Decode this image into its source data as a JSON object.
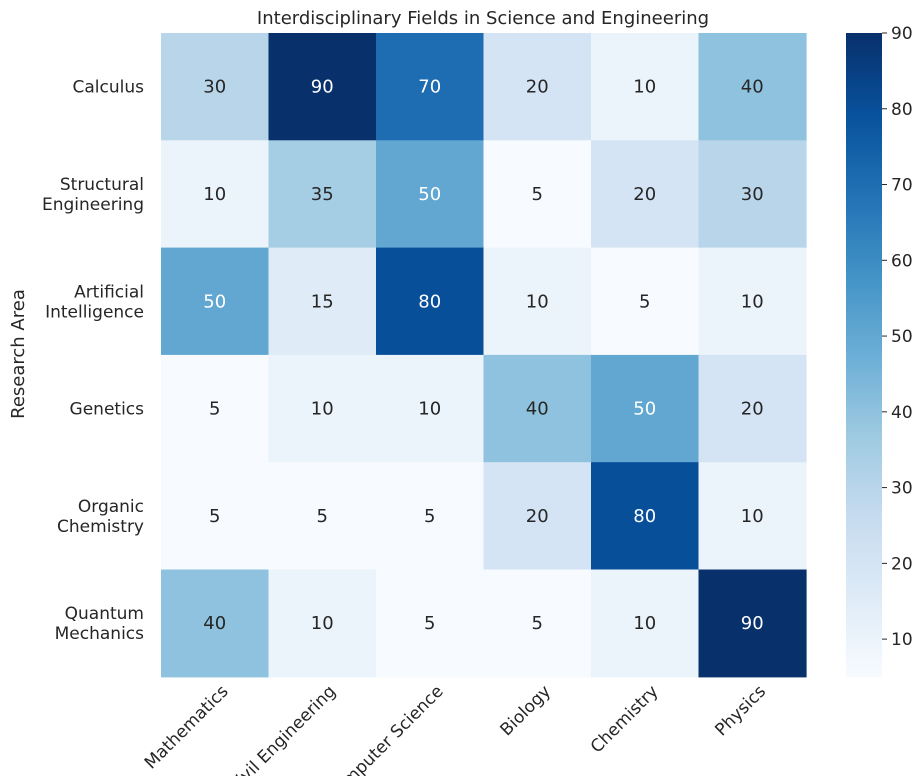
{
  "chart_data": {
    "type": "heatmap",
    "title": "Interdisciplinary Fields in Science and Engineering",
    "xlabel": "",
    "ylabel": "Research Area",
    "x_categories": [
      "Mathematics",
      "Civil Engineering",
      "Computer Science",
      "Biology",
      "Chemistry",
      "Physics"
    ],
    "y_categories": [
      "Calculus",
      "Structural Engineering",
      "Artificial Intelligence",
      "Genetics",
      "Organic Chemistry",
      "Quantum Mechanics"
    ],
    "values": [
      [
        30,
        90,
        70,
        20,
        10,
        40
      ],
      [
        10,
        35,
        50,
        5,
        20,
        30
      ],
      [
        50,
        15,
        80,
        10,
        5,
        10
      ],
      [
        5,
        10,
        10,
        40,
        50,
        20
      ],
      [
        5,
        5,
        5,
        20,
        80,
        10
      ],
      [
        40,
        10,
        5,
        5,
        10,
        90
      ]
    ],
    "colorscale": "Blues",
    "colorbar": {
      "min": 5,
      "max": 90,
      "ticks": [
        10,
        20,
        30,
        40,
        50,
        60,
        70,
        80,
        90
      ]
    },
    "annotated": true
  }
}
